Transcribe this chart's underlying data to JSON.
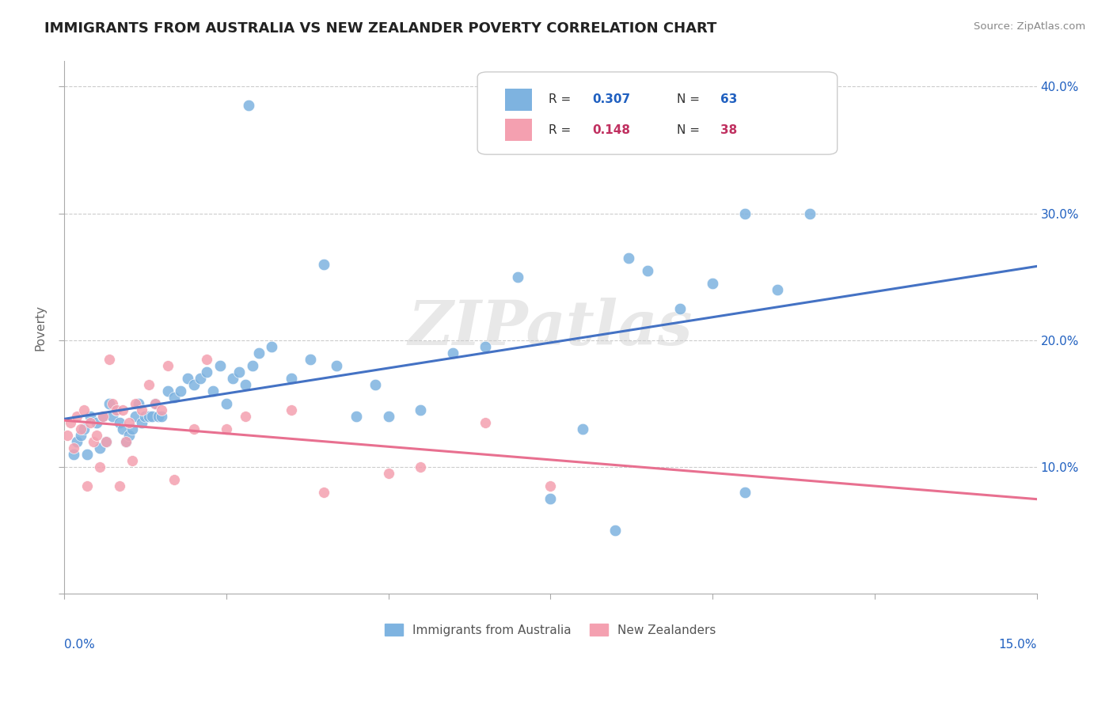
{
  "title": "IMMIGRANTS FROM AUSTRALIA VS NEW ZEALANDER POVERTY CORRELATION CHART",
  "source": "Source: ZipAtlas.com",
  "ylabel": "Poverty",
  "xlim": [
    0.0,
    15.0
  ],
  "ylim": [
    0.0,
    42.0
  ],
  "watermark": "ZIPatlas",
  "color_blue": "#7EB3E0",
  "color_pink": "#F4A0B0",
  "color_blue_line": "#4472C4",
  "color_pink_line": "#E87090",
  "color_blue_dark": "#2060C0",
  "color_pink_dark": "#C03060",
  "blue_x": [
    0.15,
    0.2,
    0.25,
    0.3,
    0.35,
    0.4,
    0.5,
    0.55,
    0.6,
    0.65,
    0.7,
    0.75,
    0.8,
    0.85,
    0.9,
    0.95,
    1.0,
    1.05,
    1.1,
    1.15,
    1.2,
    1.25,
    1.3,
    1.35,
    1.4,
    1.45,
    1.5,
    1.6,
    1.7,
    1.8,
    1.9,
    2.0,
    2.1,
    2.2,
    2.3,
    2.4,
    2.5,
    2.6,
    2.7,
    2.8,
    2.85,
    2.9,
    3.0,
    3.2,
    3.5,
    3.8,
    4.0,
    4.2,
    4.5,
    4.8,
    5.0,
    5.5,
    6.0,
    6.5,
    7.0,
    7.5,
    8.0,
    8.5,
    8.7,
    9.0,
    9.5,
    10.0,
    10.5,
    11.0,
    11.5,
    10.5
  ],
  "blue_y": [
    11.0,
    12.0,
    12.5,
    13.0,
    11.0,
    14.0,
    13.5,
    11.5,
    14.0,
    12.0,
    15.0,
    14.0,
    14.5,
    13.5,
    13.0,
    12.0,
    12.5,
    13.0,
    14.0,
    15.0,
    13.5,
    14.0,
    14.0,
    14.0,
    15.0,
    14.0,
    14.0,
    16.0,
    15.5,
    16.0,
    17.0,
    16.5,
    17.0,
    17.5,
    16.0,
    18.0,
    15.0,
    17.0,
    17.5,
    16.5,
    38.5,
    18.0,
    19.0,
    19.5,
    17.0,
    18.5,
    26.0,
    18.0,
    14.0,
    16.5,
    14.0,
    14.5,
    19.0,
    19.5,
    25.0,
    7.5,
    13.0,
    5.0,
    26.5,
    25.5,
    22.5,
    24.5,
    30.0,
    24.0,
    30.0,
    8.0
  ],
  "pink_x": [
    0.05,
    0.1,
    0.15,
    0.2,
    0.25,
    0.3,
    0.35,
    0.4,
    0.45,
    0.5,
    0.55,
    0.6,
    0.65,
    0.7,
    0.75,
    0.8,
    0.85,
    0.9,
    0.95,
    1.0,
    1.05,
    1.1,
    1.2,
    1.3,
    1.4,
    1.5,
    1.6,
    1.7,
    2.0,
    2.2,
    2.5,
    2.8,
    3.5,
    4.0,
    5.0,
    5.5,
    6.5,
    7.5
  ],
  "pink_y": [
    12.5,
    13.5,
    11.5,
    14.0,
    13.0,
    14.5,
    8.5,
    13.5,
    12.0,
    12.5,
    10.0,
    14.0,
    12.0,
    18.5,
    15.0,
    14.5,
    8.5,
    14.5,
    12.0,
    13.5,
    10.5,
    15.0,
    14.5,
    16.5,
    15.0,
    14.5,
    18.0,
    9.0,
    13.0,
    18.5,
    13.0,
    14.0,
    14.5,
    8.0,
    9.5,
    10.0,
    13.5,
    8.5
  ]
}
